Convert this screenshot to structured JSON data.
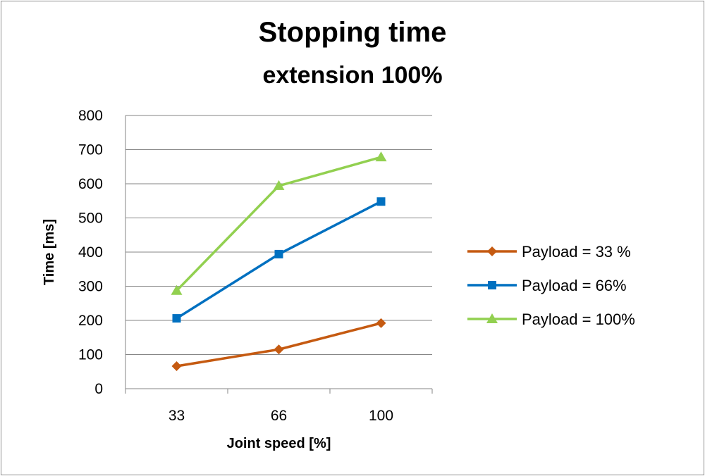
{
  "chart_data": {
    "type": "line",
    "title": "Stopping time",
    "subtitle": "extension 100%",
    "xlabel": "Joint speed [%]",
    "ylabel": "Time [ms]",
    "categories": [
      "33",
      "66",
      "100"
    ],
    "ylim": [
      0,
      800
    ],
    "yticks": [
      0,
      100,
      200,
      300,
      400,
      500,
      600,
      700,
      800
    ],
    "grid": true,
    "legend_position": "right",
    "series": [
      {
        "name": "Payload = 33 %",
        "values": [
          66,
          115,
          192
        ],
        "color": "#C55A11",
        "marker": "diamond"
      },
      {
        "name": "Payload =  66%",
        "values": [
          206,
          394,
          548
        ],
        "color": "#0070C0",
        "marker": "square"
      },
      {
        "name": "Payload =  100%",
        "values": [
          287,
          594,
          678
        ],
        "color": "#92D050",
        "marker": "triangle"
      }
    ]
  }
}
